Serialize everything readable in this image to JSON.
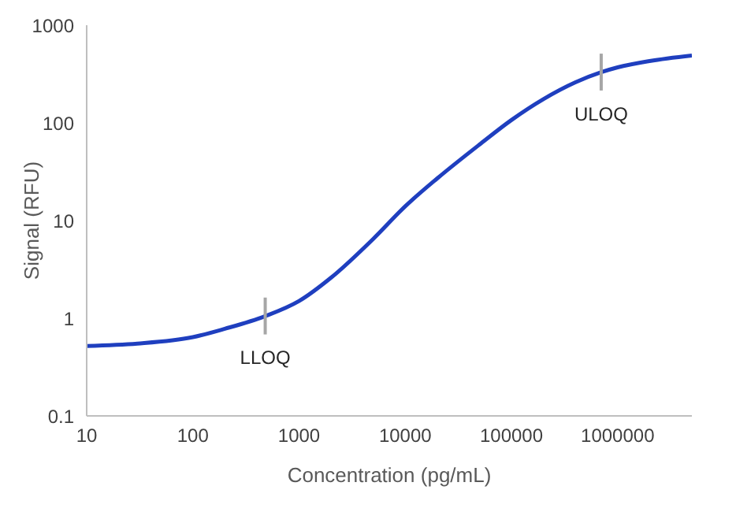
{
  "chart_data": {
    "type": "line",
    "xlabel": "Concentration (pg/mL)",
    "ylabel": "Signal (RFU)",
    "log": "xy",
    "xlim": [
      10,
      5000000
    ],
    "xticks": [
      10,
      100,
      1000,
      10000,
      100000,
      1000000
    ],
    "ylim": [
      0.1,
      1000
    ],
    "yticks": [
      0.1,
      1,
      10,
      100,
      1000
    ],
    "grid": false,
    "marker": "none",
    "line_style": "solid",
    "x": [
      10,
      30,
      100,
      200,
      480,
      1000,
      2000,
      5000,
      10000,
      20000,
      50000,
      100000,
      200000,
      400000,
      700000,
      1000000,
      2000000,
      5000000
    ],
    "series": [
      {
        "color": "#1f3fbf",
        "values": [
          0.52,
          0.55,
          0.64,
          0.78,
          1.05,
          1.5,
          2.6,
          6.5,
          14,
          27,
          60,
          107,
          175,
          260,
          330,
          370,
          430,
          490
        ]
      }
    ],
    "annotations": [
      {
        "text": "LLOQ",
        "x": 480,
        "y": 1.05
      },
      {
        "text": "ULOQ",
        "x": 700000,
        "y": 330
      }
    ]
  }
}
